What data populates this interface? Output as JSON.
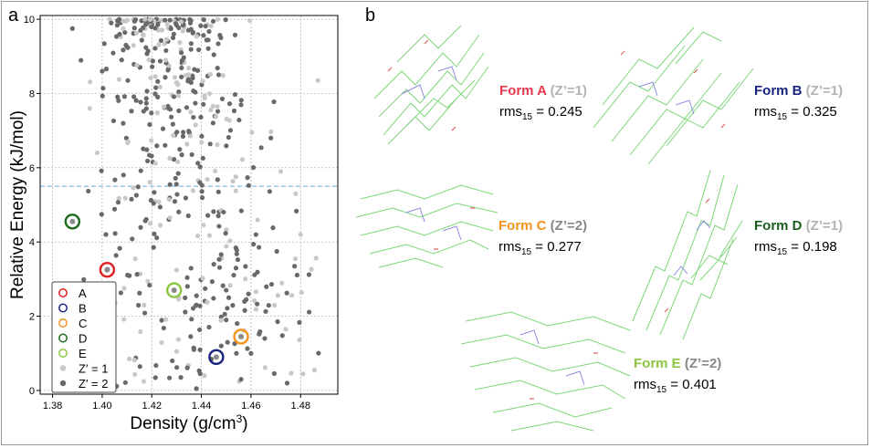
{
  "panels": {
    "a": "a",
    "b": "b"
  },
  "chart_data": {
    "type": "scatter",
    "xlabel": "Density (g/cm",
    "xlabel_sup": "3",
    "xlabel_end": ")",
    "ylabel": "Relative Energy (kJ/mol)",
    "xlim": [
      1.375,
      1.495
    ],
    "ylim": [
      -0.1,
      10.1
    ],
    "xticks": [
      "1.38",
      "1.40",
      "1.42",
      "1.44",
      "1.46",
      "1.48"
    ],
    "yticks": [
      "0",
      "2",
      "4",
      "6",
      "8",
      "10"
    ],
    "grid": true,
    "reference_line_y": 5.5,
    "series": [
      {
        "name": "Z′ = 1",
        "color": "#c8c8c8",
        "marker": "dot"
      },
      {
        "name": "Z′ = 2",
        "color": "#696969",
        "marker": "dot"
      }
    ],
    "highlighted": [
      {
        "name": "A",
        "x": 1.402,
        "y": 3.25,
        "color": "#e02020"
      },
      {
        "name": "B",
        "x": 1.446,
        "y": 0.9,
        "color": "#1a237e"
      },
      {
        "name": "C",
        "x": 1.456,
        "y": 1.45,
        "color": "#f0921c"
      },
      {
        "name": "D",
        "x": 1.388,
        "y": 4.55,
        "color": "#1d6b1d"
      },
      {
        "name": "E",
        "x": 1.429,
        "y": 2.7,
        "color": "#8cc63f"
      }
    ],
    "legend_position": "bottom-left"
  },
  "forms": [
    {
      "name": "Form A",
      "zprime": "(Z’=1)",
      "rms_prefix": "rms",
      "rms_sub": "15",
      "rms_value": " = 0.245",
      "color": "#e8384f"
    },
    {
      "name": "Form B",
      "zprime": "(Z’=1)",
      "rms_prefix": "rms",
      "rms_sub": "15",
      "rms_value": " = 0.325",
      "color": "#1a237e"
    },
    {
      "name": "Form C",
      "zprime": "(Z’=2)",
      "rms_prefix": "rms",
      "rms_sub": "15",
      "rms_value": " = 0.277",
      "color": "#f0921c"
    },
    {
      "name": "Form D",
      "zprime": "(Z’=1)",
      "rms_prefix": "rms",
      "rms_sub": "15",
      "rms_value": " = 0.198",
      "color": "#1d5e1d"
    },
    {
      "name": "Form E",
      "zprime": "(Z’=2)",
      "rms_prefix": "rms",
      "rms_sub": "15",
      "rms_value": " = 0.401",
      "color": "#8cc63f"
    }
  ]
}
